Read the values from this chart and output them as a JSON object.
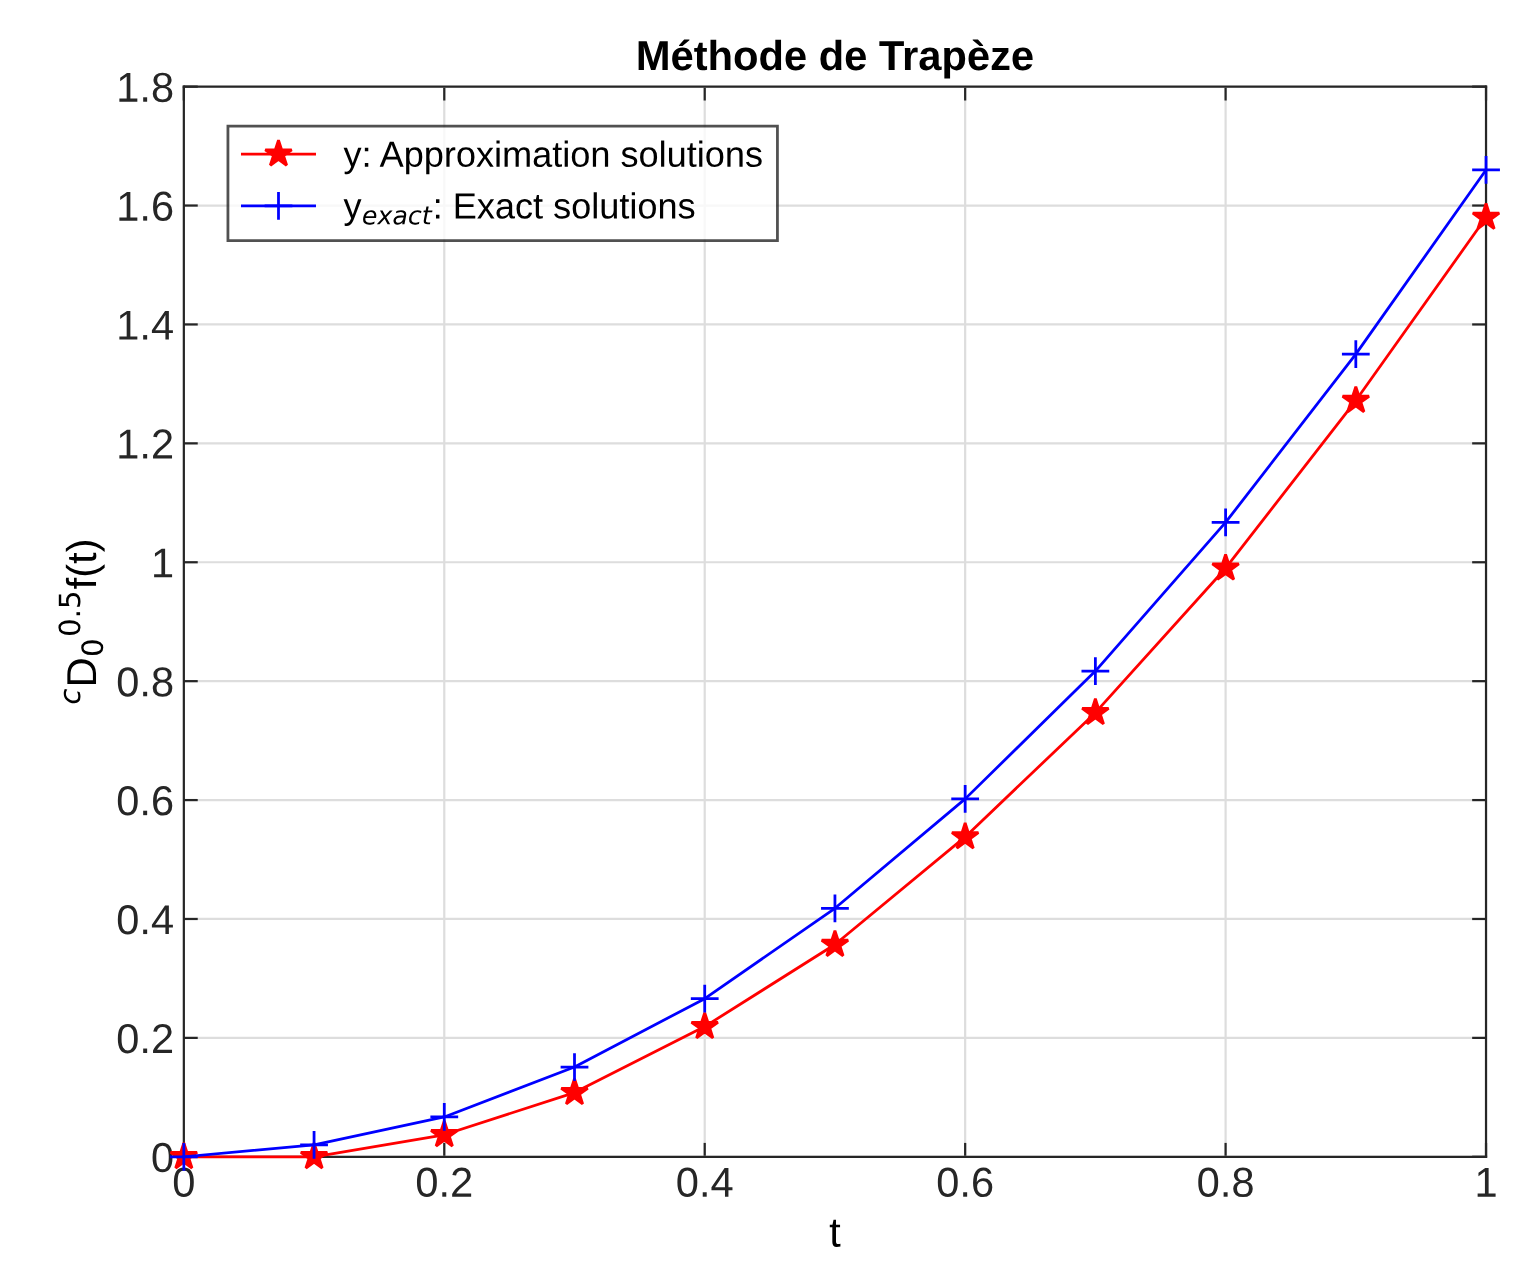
{
  "chart_data": {
    "type": "line",
    "title": "Méthode de Trapèze",
    "xlabel": "t",
    "ylabel": "$^{c}$D$_{0}$$^{0.5}$f(t)",
    "x": [
      0,
      0.1,
      0.2,
      0.3,
      0.4,
      0.5,
      0.6,
      0.7,
      0.8,
      0.9,
      1.0
    ],
    "series": [
      {
        "name": "y: Approximation solutions",
        "color": "#ff0000",
        "marker": "star",
        "values": [
          0,
          0,
          0.037,
          0.108,
          0.219,
          0.357,
          0.538,
          0.747,
          0.99,
          1.272,
          1.58
        ]
      },
      {
        "name": "y$_{exact}$: Exact solutions",
        "color": "#0000ff",
        "marker": "cross",
        "values": [
          0,
          0.02,
          0.067,
          0.151,
          0.266,
          0.418,
          0.602,
          0.817,
          1.067,
          1.35,
          1.66
        ]
      }
    ],
    "xlim": [
      0,
      1
    ],
    "xticks": [
      0,
      0.2,
      0.4,
      0.6,
      0.8,
      1
    ],
    "ylim": [
      0,
      1.8
    ],
    "yticks": [
      0,
      0.2,
      0.4,
      0.6,
      0.8,
      1,
      1.2,
      1.4,
      1.6,
      1.8
    ],
    "grid": true,
    "legend": "top left",
    "line_style": "solid"
  }
}
